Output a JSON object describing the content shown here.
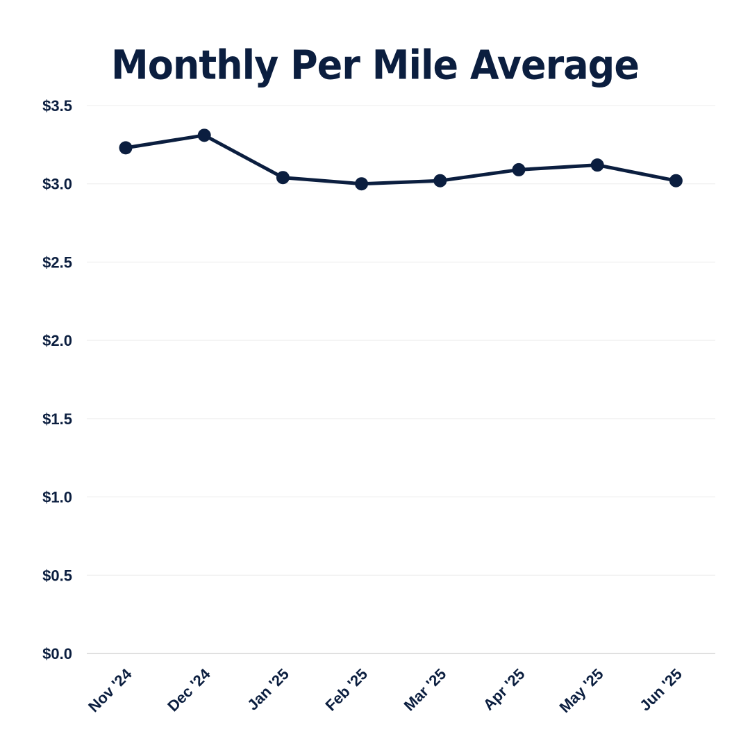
{
  "chart_data": {
    "type": "line",
    "title": "Monthly Per Mile Average",
    "xlabel": "",
    "ylabel": "",
    "categories": [
      "Nov '24",
      "Dec '24",
      "Jan '25",
      "Feb '25",
      "Mar '25",
      "Apr '25",
      "May '25",
      "Jun '25"
    ],
    "series": [
      {
        "values": [
          3.23,
          3.31,
          3.04,
          3.0,
          3.02,
          3.09,
          3.12,
          3.02
        ]
      }
    ],
    "ylim": [
      0,
      3.5
    ],
    "yticks": [
      0,
      0.5,
      1.0,
      1.5,
      2.0,
      2.5,
      3.0,
      3.5
    ],
    "ytick_labels": [
      "$0.0",
      "$0.5",
      "$1.0",
      "$1.5",
      "$2.0",
      "$2.5",
      "$3.0",
      "$3.5"
    ],
    "grid": true,
    "legend": "none",
    "line_color": "#0b1e3f"
  }
}
